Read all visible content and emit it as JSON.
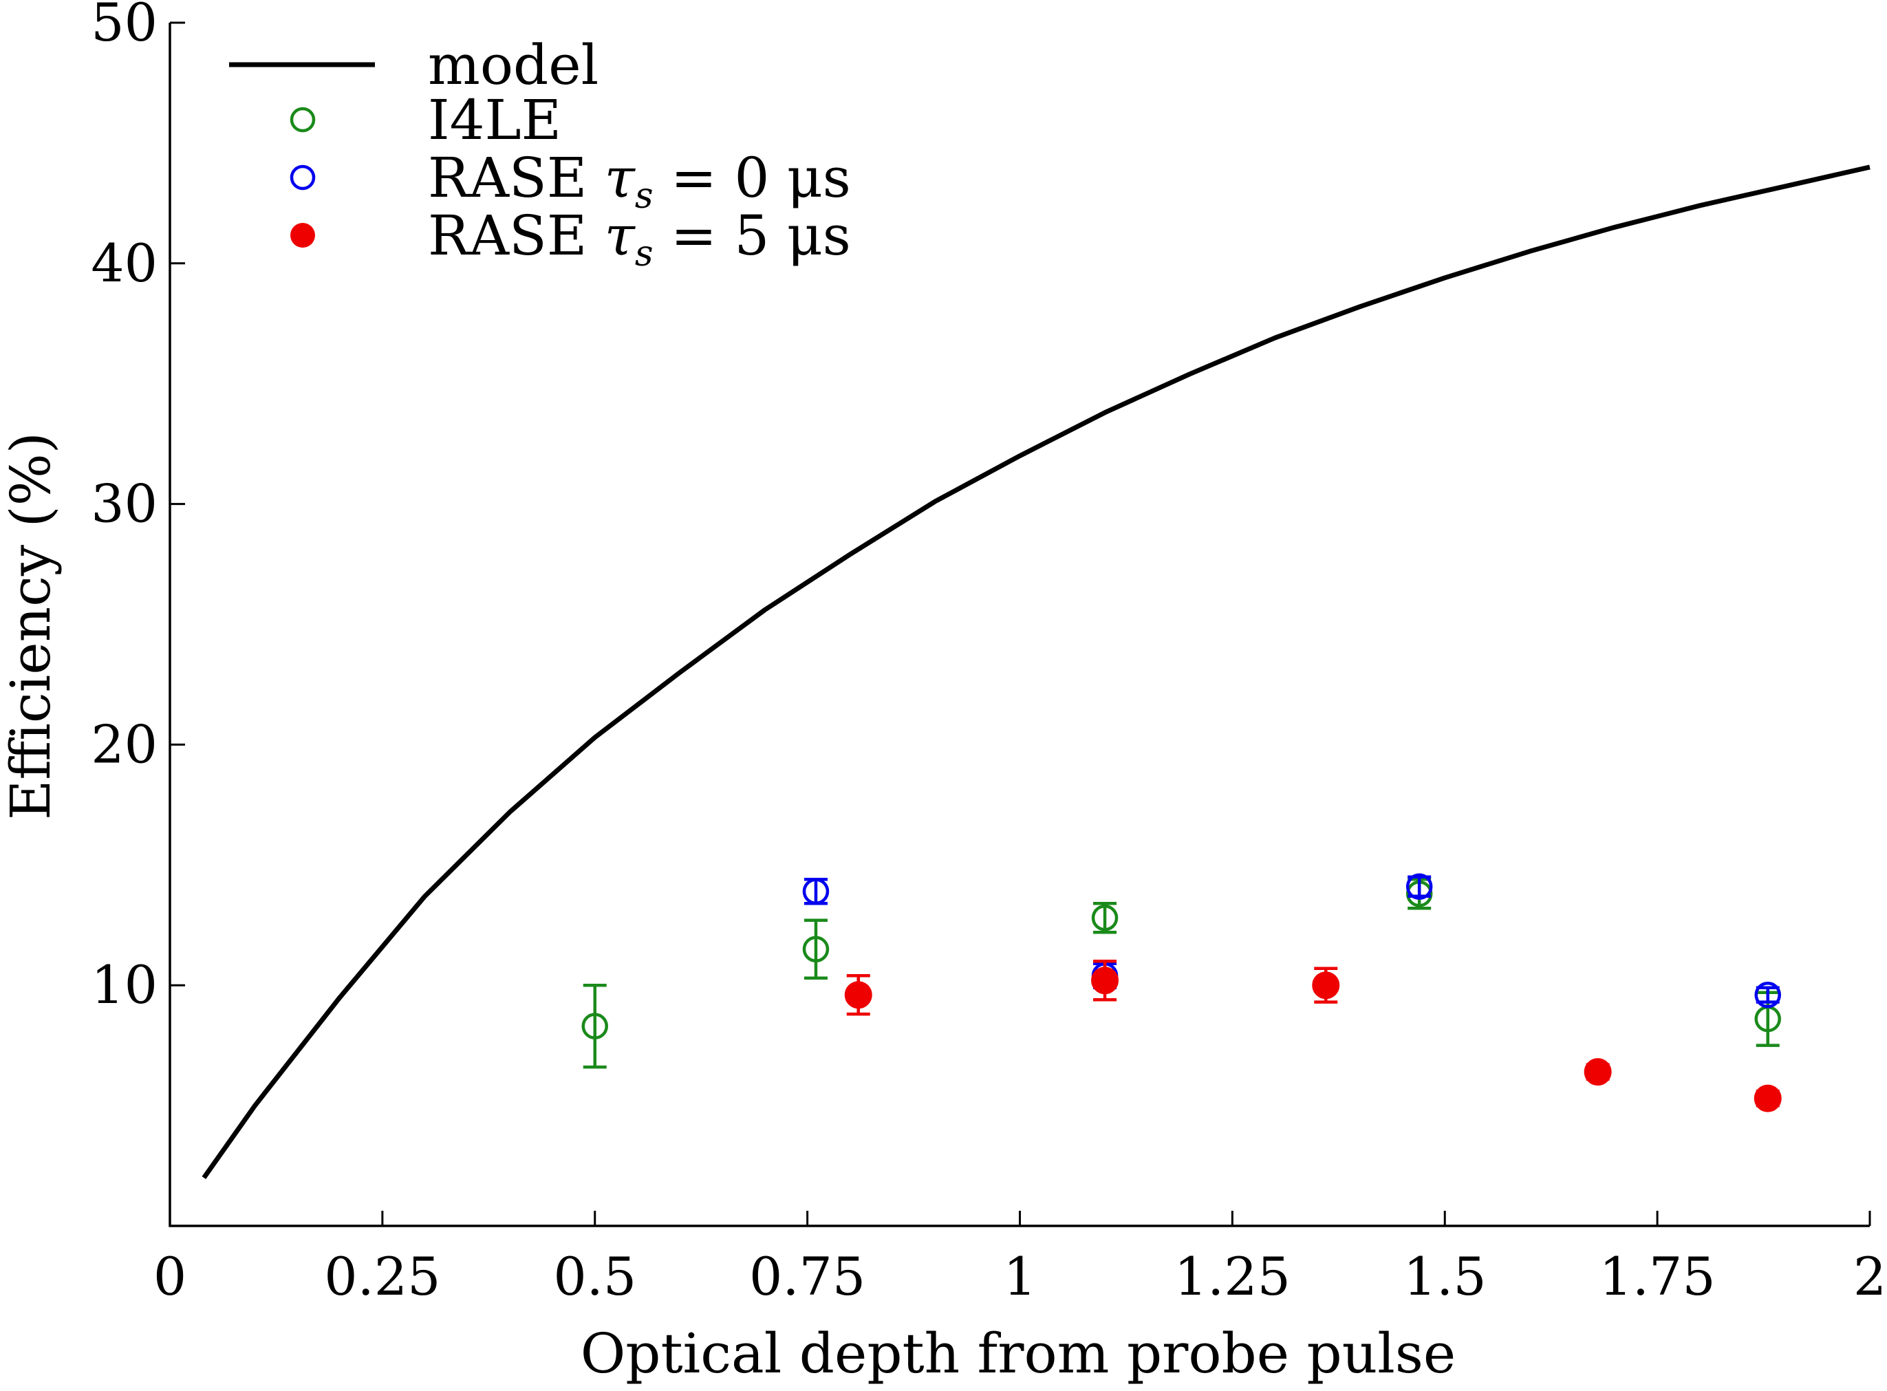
{
  "chart_data": {
    "type": "scatter",
    "xlabel": "Optical depth from probe pulse",
    "ylabel": "Efficiency (%)",
    "xlim": [
      0,
      2
    ],
    "ylim": [
      0,
      50
    ],
    "grid": false,
    "legend_position": "top-left",
    "xticks": [
      {
        "value": 0,
        "label": "0"
      },
      {
        "value": 0.25,
        "label": "0.25"
      },
      {
        "value": 0.5,
        "label": "0.5"
      },
      {
        "value": 0.75,
        "label": "0.75"
      },
      {
        "value": 1,
        "label": "1"
      },
      {
        "value": 1.25,
        "label": "1.25"
      },
      {
        "value": 1.5,
        "label": "1.5"
      },
      {
        "value": 1.75,
        "label": "1.75"
      },
      {
        "value": 2,
        "label": "2"
      }
    ],
    "yticks": [
      {
        "value": 10,
        "label": "10"
      },
      {
        "value": 20,
        "label": "20"
      },
      {
        "value": 30,
        "label": "30"
      },
      {
        "value": 40,
        "label": "40"
      },
      {
        "value": 50,
        "label": "50"
      }
    ],
    "series": [
      {
        "name": "model",
        "legend_label": "model",
        "kind": "line",
        "color": "#000000",
        "x": [
          0.04,
          0.1,
          0.2,
          0.3,
          0.4,
          0.5,
          0.6,
          0.7,
          0.8,
          0.9,
          1.0,
          1.1,
          1.2,
          1.3,
          1.4,
          1.5,
          1.6,
          1.7,
          1.8,
          1.9,
          2.0
        ],
        "y": [
          2.0,
          5.0,
          9.5,
          13.7,
          17.2,
          20.3,
          23.0,
          25.6,
          27.9,
          30.1,
          32.0,
          33.8,
          35.4,
          36.9,
          38.2,
          39.4,
          40.5,
          41.5,
          42.4,
          43.2,
          44.0
        ]
      },
      {
        "name": "I4LE",
        "legend_label": "I4LE",
        "kind": "scatter",
        "marker": "open-circle",
        "color": "#1a8a1a",
        "x": [
          0.5,
          0.76,
          1.1,
          1.47,
          1.88
        ],
        "y": [
          8.3,
          11.5,
          12.8,
          13.8,
          8.6
        ],
        "err": [
          1.7,
          1.2,
          0.6,
          0.6,
          1.1
        ]
      },
      {
        "name": "RASE tau_s=0 us",
        "legend_label": "RASE τs = 0 μs",
        "legend_main": "RASE ",
        "legend_tau": "τ",
        "legend_sub": "s",
        "legend_rest": " = 0 μs",
        "kind": "scatter",
        "marker": "open-circle",
        "color": "#0000ee",
        "x": [
          0.76,
          1.1,
          1.47,
          1.88
        ],
        "y": [
          13.9,
          10.4,
          14.1,
          9.6
        ],
        "err": [
          0.5,
          0.5,
          0.4,
          0.3
        ]
      },
      {
        "name": "RASE tau_s=5 us",
        "legend_label": "RASE τs = 5 μs",
        "legend_main": "RASE ",
        "legend_tau": "τ",
        "legend_sub": "s",
        "legend_rest": " = 5 μs",
        "kind": "scatter",
        "marker": "filled-circle",
        "color": "#ee0000",
        "x": [
          0.81,
          1.1,
          1.36,
          1.68,
          1.88
        ],
        "y": [
          9.6,
          10.2,
          10.0,
          6.4,
          5.3
        ],
        "err": [
          0.8,
          0.8,
          0.7,
          0.3,
          0.3
        ]
      }
    ]
  }
}
